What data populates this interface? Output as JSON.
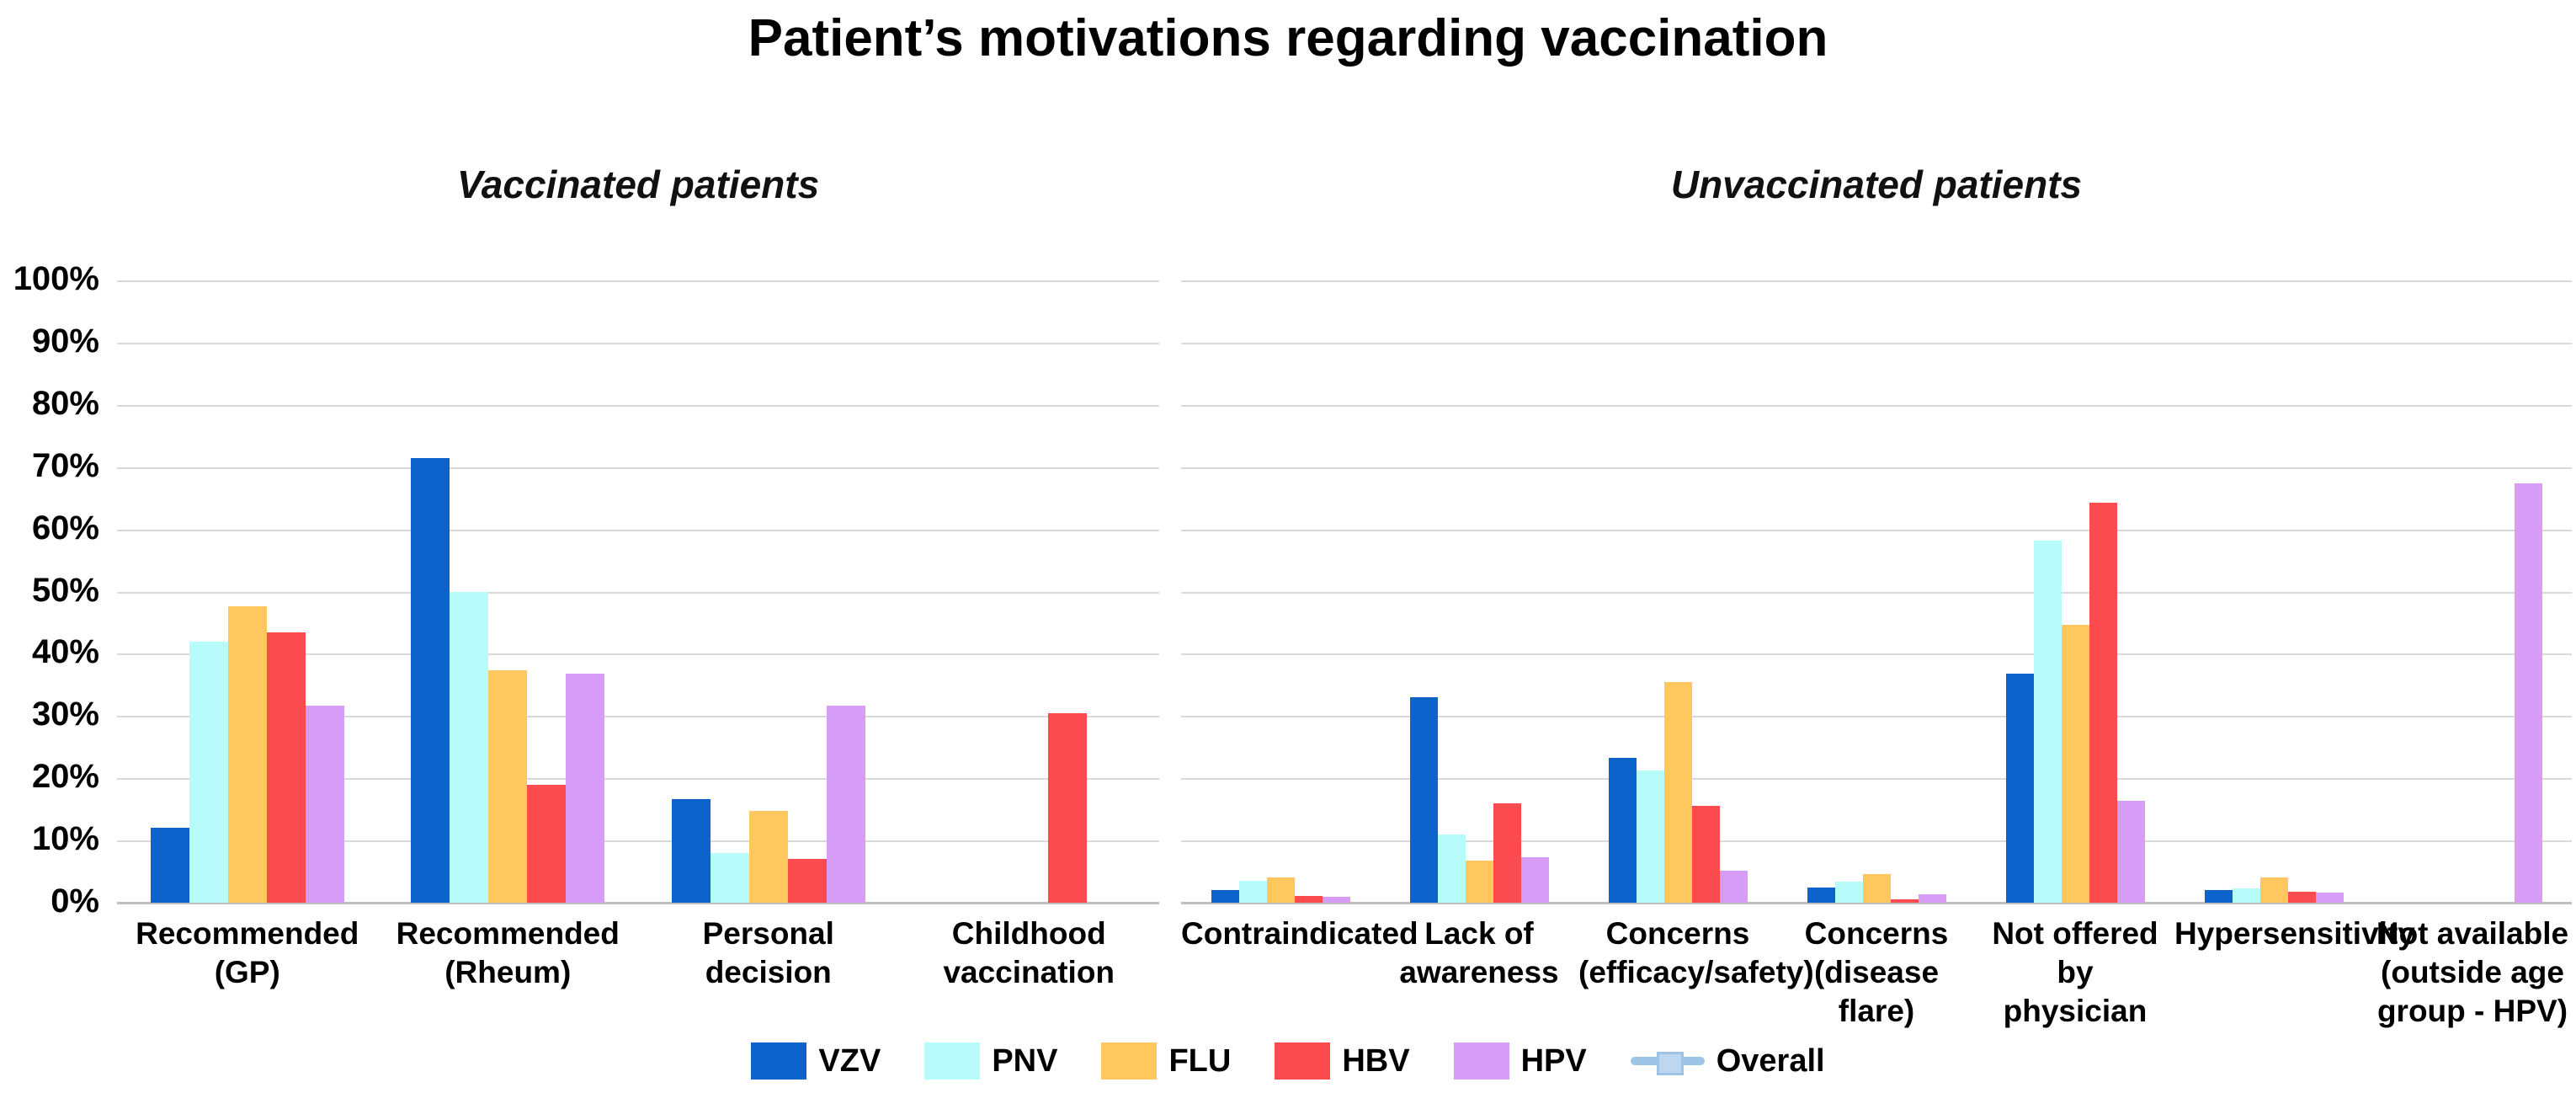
{
  "title": "Patient’s motivations regarding vaccination",
  "colors": {
    "VZV": "#0b63cb",
    "PNV": "#b7fbfb",
    "FLU": "#ffc85e",
    "HBV": "#fb4b4f",
    "HPV": "#d79cf6",
    "Overall": "#9dc3e6",
    "overall_marker": "#bdd7ee",
    "gridline": "#d9d9d9",
    "axis_line": "#bfbfbf"
  },
  "y_axis": {
    "ticks": [
      "0%",
      "10%",
      "20%",
      "30%",
      "40%",
      "50%",
      "60%",
      "70%",
      "80%",
      "90%",
      "100%"
    ],
    "min": 0,
    "max": 100
  },
  "legend": {
    "entries": [
      {
        "label": "VZV",
        "marker": "square",
        "color": "#0b63cb"
      },
      {
        "label": "PNV",
        "marker": "square",
        "color": "#b7fbfb"
      },
      {
        "label": "FLU",
        "marker": "square",
        "color": "#ffc85e"
      },
      {
        "label": "HBV",
        "marker": "square",
        "color": "#fb4b4f"
      },
      {
        "label": "HPV",
        "marker": "square",
        "color": "#d79cf6"
      },
      {
        "label": "Overall",
        "marker": "line",
        "color": "#9dc3e6"
      }
    ]
  },
  "chart_data": [
    {
      "type": "bar",
      "title": "Vaccinated patients",
      "ylabel": "",
      "xlabel": "",
      "ylim": [
        0,
        100
      ],
      "grid": true,
      "legend_position": "bottom-shared",
      "categories": [
        {
          "label": "Recommended (GP)",
          "lines": [
            "Recommended (GP)"
          ]
        },
        {
          "label": "Recommended (Rheum)",
          "lines": [
            "Recommended",
            "(Rheum)"
          ]
        },
        {
          "label": "Personal decision",
          "lines": [
            "Personal decision"
          ]
        },
        {
          "label": "Childhood vaccination",
          "lines": [
            "Childhood",
            "vaccination"
          ]
        }
      ],
      "series": [
        {
          "name": "VZV",
          "values": [
            12,
            71.5,
            16.6,
            0
          ]
        },
        {
          "name": "PNV",
          "values": [
            42,
            50,
            8,
            0
          ]
        },
        {
          "name": "FLU",
          "values": [
            47.7,
            37.4,
            14.8,
            0
          ]
        },
        {
          "name": "HBV",
          "values": [
            43.5,
            19,
            7.1,
            30.5
          ]
        },
        {
          "name": "HPV",
          "values": [
            31.6,
            36.8,
            31.6,
            0
          ]
        }
      ]
    },
    {
      "type": "bar",
      "title": "Unvaccinated patients",
      "ylabel": "",
      "xlabel": "",
      "ylim": [
        0,
        100
      ],
      "grid": true,
      "legend_position": "bottom-shared",
      "categories": [
        {
          "label": "Contraindicated",
          "lines": [
            "Contraindicated"
          ]
        },
        {
          "label": "Lack of awareness",
          "lines": [
            "Lack of",
            "awareness"
          ]
        },
        {
          "label": "Concerns (efficacy/safety)",
          "lines": [
            "Concerns",
            "(efficacy/safety)"
          ]
        },
        {
          "label": "Concerns (disease flare)",
          "lines": [
            "Concerns",
            "(disease flare)"
          ]
        },
        {
          "label": "Not offered by physician",
          "lines": [
            "Not offered by",
            "physician"
          ]
        },
        {
          "label": "Hypersensitivity",
          "lines": [
            "Hypersensitivity"
          ]
        },
        {
          "label": "Not available (outside age group - HPV)",
          "lines": [
            "Not available",
            "(outside age",
            "group - HPV)"
          ]
        }
      ],
      "series": [
        {
          "name": "VZV",
          "values": [
            2,
            33,
            23.3,
            2.5,
            36.8,
            2,
            0
          ]
        },
        {
          "name": "PNV",
          "values": [
            3.5,
            11,
            21.2,
            3.4,
            58.2,
            2.3,
            0
          ]
        },
        {
          "name": "FLU",
          "values": [
            4,
            6.8,
            35.5,
            4.6,
            44.6,
            4,
            0
          ]
        },
        {
          "name": "HBV",
          "values": [
            1.1,
            16,
            15.5,
            0.5,
            64.3,
            1.8,
            0
          ]
        },
        {
          "name": "HPV",
          "values": [
            1,
            7.3,
            5.2,
            1.4,
            16.4,
            1.6,
            67.4
          ]
        }
      ]
    }
  ]
}
